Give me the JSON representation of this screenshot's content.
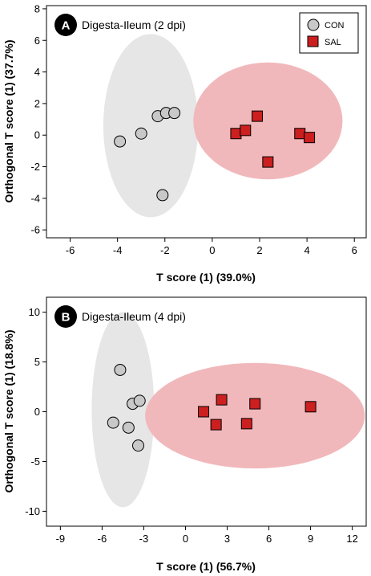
{
  "chart_data": [
    {
      "type": "scatter",
      "panel_label": "A",
      "title": "Digesta-Ileum (2 dpi)",
      "xlabel": "T score (1) (39.0%)",
      "ylabel": "Orthogonal T score (1) (37.7%)",
      "xlim": [
        -7,
        6.5
      ],
      "ylim": [
        -6.5,
        8.2
      ],
      "xticks": [
        -6,
        -4,
        -2,
        0,
        2,
        4,
        6
      ],
      "yticks": [
        -6,
        -4,
        -2,
        0,
        2,
        4,
        6,
        8
      ],
      "legend_position": "top-right",
      "legend": [
        {
          "name": "CON",
          "marker": "circle",
          "color": "#c8c8c8"
        },
        {
          "name": "SAL",
          "marker": "square",
          "color": "#cc1f1f"
        }
      ],
      "ellipses": [
        {
          "group": "CON",
          "cx": -2.6,
          "cy": 0.6,
          "rx": 2.0,
          "ry": 5.8,
          "color": "#e6e6e6"
        },
        {
          "group": "SAL",
          "cx": 2.35,
          "cy": 0.9,
          "rx": 3.15,
          "ry": 3.7,
          "color": "#f1b8bb"
        }
      ],
      "series": [
        {
          "name": "CON",
          "points": [
            [
              -3.9,
              -0.4
            ],
            [
              -3.0,
              0.1
            ],
            [
              -2.3,
              1.2
            ],
            [
              -1.95,
              1.4
            ],
            [
              -1.6,
              1.4
            ],
            [
              -2.1,
              -3.8
            ]
          ]
        },
        {
          "name": "SAL",
          "points": [
            [
              1.0,
              0.1
            ],
            [
              1.4,
              0.3
            ],
            [
              1.9,
              1.2
            ],
            [
              2.35,
              -1.7
            ],
            [
              3.7,
              0.1
            ],
            [
              4.1,
              -0.15
            ]
          ]
        }
      ]
    },
    {
      "type": "scatter",
      "panel_label": "B",
      "title": "Digesta-Ileum (4 dpi)",
      "xlabel": "T score (1) (56.7%)",
      "ylabel": "Orthogonal T score (1) (18.8%)",
      "xlim": [
        -10,
        13
      ],
      "ylim": [
        -11.5,
        11.5
      ],
      "xticks": [
        -9,
        -6,
        -3,
        0,
        3,
        6,
        9,
        12
      ],
      "yticks": [
        -10,
        -5,
        0,
        5,
        10
      ],
      "ellipses": [
        {
          "group": "CON",
          "cx": -4.5,
          "cy": 0.2,
          "rx": 2.25,
          "ry": 9.8,
          "color": "#e6e6e6"
        },
        {
          "group": "SAL",
          "cx": 5.0,
          "cy": -0.4,
          "rx": 7.9,
          "ry": 5.3,
          "color": "#f1b8bb"
        }
      ],
      "series": [
        {
          "name": "CON",
          "points": [
            [
              -4.7,
              4.2
            ],
            [
              -3.8,
              0.8
            ],
            [
              -3.3,
              1.1
            ],
            [
              -5.2,
              -1.1
            ],
            [
              -4.1,
              -1.6
            ],
            [
              -3.4,
              -3.4
            ]
          ]
        },
        {
          "name": "SAL",
          "points": [
            [
              1.3,
              0.0
            ],
            [
              2.6,
              1.2
            ],
            [
              2.2,
              -1.3
            ],
            [
              5.0,
              0.8
            ],
            [
              4.4,
              -1.2
            ],
            [
              9.0,
              0.5
            ]
          ]
        }
      ]
    }
  ],
  "colors": {
    "con_marker": "#c8c8c8",
    "sal_marker": "#cc1f1f",
    "badge": "#000000"
  }
}
